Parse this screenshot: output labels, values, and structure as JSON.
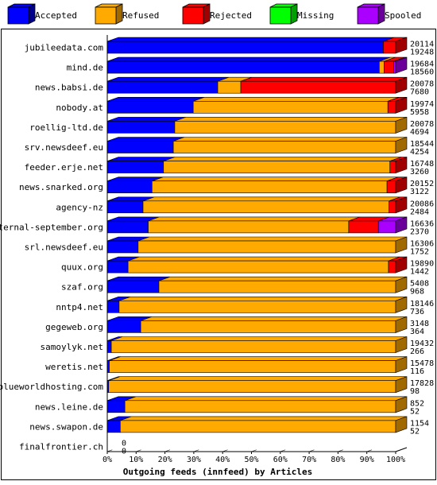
{
  "chart_data": {
    "type": "bar",
    "orientation": "horizontal",
    "stacked": true,
    "three_d": true,
    "xlabel": "Outgoing feeds (innfeed) by Articles",
    "xlim": [
      0,
      100
    ],
    "x_unit": "%",
    "xticks": [
      "0%",
      "10%",
      "20%",
      "30%",
      "40%",
      "50%",
      "60%",
      "70%",
      "80%",
      "90%",
      "100%"
    ],
    "grid": false,
    "legend_position": "top",
    "series": [
      {
        "name": "Accepted",
        "color": "#0000ff",
        "side_color": "#00008b"
      },
      {
        "name": "Refused",
        "color": "#ffaa00",
        "side_color": "#a06a00"
      },
      {
        "name": "Rejected",
        "color": "#ff0000",
        "side_color": "#a00000"
      },
      {
        "name": "Missing",
        "color": "#00ff00",
        "side_color": "#00a000"
      },
      {
        "name": "Spooled",
        "color": "#aa00ff",
        "side_color": "#6a0099"
      }
    ],
    "categories": [
      {
        "name": "jubileedata.com",
        "total": "20114",
        "accepted_count": "19248",
        "pct": [
          95.7,
          0,
          4.3,
          0,
          0
        ]
      },
      {
        "name": "mind.de",
        "total": "19684",
        "accepted_count": "18560",
        "pct": [
          94.3,
          1.7,
          3.3,
          0,
          0.7
        ]
      },
      {
        "name": "news.babsi.de",
        "total": "20078",
        "accepted_count": "7680",
        "pct": [
          38.3,
          8.0,
          53.7,
          0,
          0
        ]
      },
      {
        "name": "nobody.at",
        "total": "19974",
        "accepted_count": "5958",
        "pct": [
          29.8,
          67.5,
          2.7,
          0,
          0
        ]
      },
      {
        "name": "roellig-ltd.de",
        "total": "20078",
        "accepted_count": "4694",
        "pct": [
          23.4,
          76.6,
          0,
          0,
          0
        ]
      },
      {
        "name": "srv.newsdeef.eu",
        "total": "18544",
        "accepted_count": "4254",
        "pct": [
          22.9,
          77.1,
          0,
          0,
          0
        ]
      },
      {
        "name": "feeder.erje.net",
        "total": "16748",
        "accepted_count": "3260",
        "pct": [
          19.5,
          78.5,
          2.0,
          0,
          0
        ]
      },
      {
        "name": "news.snarked.org",
        "total": "20152",
        "accepted_count": "3122",
        "pct": [
          15.5,
          81.5,
          3.0,
          0,
          0
        ]
      },
      {
        "name": "agency-nz",
        "total": "20086",
        "accepted_count": "2484",
        "pct": [
          12.4,
          85.3,
          2.3,
          0,
          0
        ]
      },
      {
        "name": "eternal-september.org",
        "total": "16636",
        "accepted_count": "2370",
        "pct": [
          14.2,
          69.5,
          10.3,
          0,
          6.0
        ]
      },
      {
        "name": "srl.newsdeef.eu",
        "total": "16306",
        "accepted_count": "1752",
        "pct": [
          10.7,
          89.3,
          0,
          0,
          0
        ]
      },
      {
        "name": "quux.org",
        "total": "19890",
        "accepted_count": "1442",
        "pct": [
          7.2,
          90.3,
          2.5,
          0,
          0
        ]
      },
      {
        "name": "szaf.org",
        "total": "5408",
        "accepted_count": "968",
        "pct": [
          17.9,
          82.1,
          0,
          0,
          0
        ]
      },
      {
        "name": "nntp4.net",
        "total": "18146",
        "accepted_count": "736",
        "pct": [
          4.1,
          95.9,
          0,
          0,
          0
        ]
      },
      {
        "name": "gegeweb.org",
        "total": "3148",
        "accepted_count": "364",
        "pct": [
          11.6,
          88.4,
          0,
          0,
          0
        ]
      },
      {
        "name": "samoylyk.net",
        "total": "19432",
        "accepted_count": "266",
        "pct": [
          1.4,
          98.6,
          0,
          0,
          0
        ]
      },
      {
        "name": "weretis.net",
        "total": "15478",
        "accepted_count": "116",
        "pct": [
          0.7,
          99.3,
          0,
          0,
          0
        ]
      },
      {
        "name": "blueworldhosting.com",
        "total": "17828",
        "accepted_count": "98",
        "pct": [
          0.5,
          99.5,
          0,
          0,
          0
        ]
      },
      {
        "name": "news.leine.de",
        "total": "852",
        "accepted_count": "52",
        "pct": [
          6.1,
          93.9,
          0,
          0,
          0
        ]
      },
      {
        "name": "news.swapon.de",
        "total": "1154",
        "accepted_count": "52",
        "pct": [
          4.5,
          95.5,
          0,
          0,
          0
        ]
      },
      {
        "name": "finalfrontier.ch",
        "total": "0",
        "accepted_count": "0",
        "pct": [
          0,
          0,
          0,
          0,
          0
        ]
      }
    ]
  }
}
